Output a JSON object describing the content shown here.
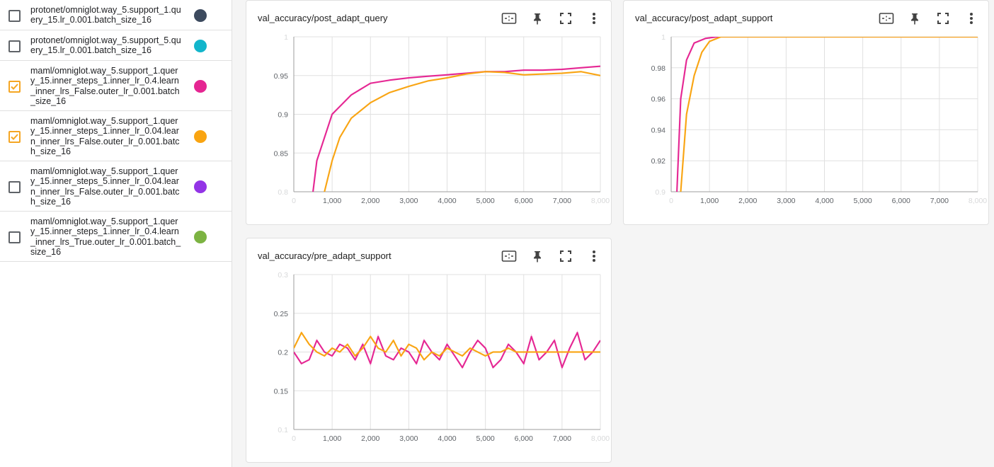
{
  "runs": [
    {
      "label": "protonet/omniglot.way_5.support_1.query_15.lr_0.001.batch_size_16",
      "checked": false,
      "color": "#3c4a5e"
    },
    {
      "label": "protonet/omniglot.way_5.support_5.query_15.lr_0.001.batch_size_16",
      "checked": false,
      "color": "#12b5cb"
    },
    {
      "label": "maml/omniglot.way_5.support_1.query_15.inner_steps_1.inner_lr_0.4.learn_inner_lrs_False.outer_lr_0.001.batch_size_16",
      "checked": true,
      "color": "#e52592"
    },
    {
      "label": "maml/omniglot.way_5.support_1.query_15.inner_steps_1.inner_lr_0.04.learn_inner_lrs_False.outer_lr_0.001.batch_size_16",
      "checked": true,
      "color": "#f9a411"
    },
    {
      "label": "maml/omniglot.way_5.support_1.query_15.inner_steps_5.inner_lr_0.04.learn_inner_lrs_False.outer_lr_0.001.batch_size_16",
      "checked": false,
      "color": "#9334e6"
    },
    {
      "label": "maml/omniglot.way_5.support_1.query_15.inner_steps_1.inner_lr_0.4.learn_inner_lrs_True.outer_lr_0.001.batch_size_16",
      "checked": false,
      "color": "#7cb342"
    }
  ],
  "icons": [
    "fit-domain-icon",
    "pin-icon",
    "fullscreen-icon",
    "more-vert-icon"
  ],
  "chart_data": [
    {
      "title": "val_accuracy/post_adapt_query",
      "type": "line",
      "xlim": [
        0,
        8000
      ],
      "ylim": [
        0.8,
        1.0
      ],
      "xticks": [
        0,
        1000,
        2000,
        3000,
        4000,
        5000,
        6000,
        7000,
        8000
      ],
      "xtick_labels": [
        "0",
        "1,000",
        "2,000",
        "3,000",
        "4,000",
        "5,000",
        "6,000",
        "7,000",
        "8,000"
      ],
      "yticks": [
        0.8,
        0.85,
        0.9,
        0.95,
        1.0
      ],
      "ytick_labels": [
        "0.8",
        "0.85",
        "0.9",
        "0.95",
        "1"
      ],
      "grid": true,
      "series": [
        {
          "color": "#e52592",
          "x": [
            0,
            500,
            600,
            800,
            1000,
            1200,
            1500,
            2000,
            2500,
            3000,
            3500,
            4000,
            4500,
            5000,
            5500,
            6000,
            6500,
            7000,
            7500,
            8000
          ],
          "y": [
            0.7,
            0.8,
            0.84,
            0.87,
            0.9,
            0.91,
            0.925,
            0.94,
            0.944,
            0.947,
            0.949,
            0.951,
            0.953,
            0.955,
            0.955,
            0.957,
            0.957,
            0.958,
            0.96,
            0.962
          ]
        },
        {
          "color": "#f9a411",
          "x": [
            0,
            800,
            1000,
            1200,
            1500,
            2000,
            2500,
            3000,
            3500,
            4000,
            4500,
            5000,
            5500,
            6000,
            6500,
            7000,
            7500,
            8000
          ],
          "y": [
            0.7,
            0.8,
            0.84,
            0.87,
            0.895,
            0.915,
            0.928,
            0.936,
            0.943,
            0.947,
            0.952,
            0.955,
            0.954,
            0.951,
            0.952,
            0.953,
            0.955,
            0.95
          ]
        }
      ]
    },
    {
      "title": "val_accuracy/post_adapt_support",
      "type": "line",
      "xlim": [
        0,
        8000
      ],
      "ylim": [
        0.9,
        1.0
      ],
      "xticks": [
        0,
        1000,
        2000,
        3000,
        4000,
        5000,
        6000,
        7000,
        8000
      ],
      "xtick_labels": [
        "0",
        "1,000",
        "2,000",
        "3,000",
        "4,000",
        "5,000",
        "6,000",
        "7,000",
        "8,000"
      ],
      "yticks": [
        0.9,
        0.92,
        0.94,
        0.96,
        0.98,
        1.0
      ],
      "ytick_labels": [
        "0.9",
        "0.92",
        "0.94",
        "0.96",
        "0.98",
        "1"
      ],
      "grid": true,
      "series": [
        {
          "color": "#e52592",
          "x": [
            0,
            150,
            250,
            400,
            600,
            900,
            1200,
            8000
          ],
          "y": [
            0.85,
            0.9,
            0.96,
            0.985,
            0.996,
            0.999,
            1.0,
            1.0
          ]
        },
        {
          "color": "#f9a411",
          "x": [
            0,
            250,
            400,
            600,
            800,
            1000,
            1300,
            8000
          ],
          "y": [
            0.85,
            0.9,
            0.95,
            0.975,
            0.99,
            0.997,
            1.0,
            1.0
          ]
        }
      ]
    },
    {
      "title": "val_accuracy/pre_adapt_support",
      "type": "line",
      "xlim": [
        0,
        8000
      ],
      "ylim": [
        0.1,
        0.3
      ],
      "xticks": [
        0,
        1000,
        2000,
        3000,
        4000,
        5000,
        6000,
        7000,
        8000
      ],
      "xtick_labels": [
        "0",
        "1,000",
        "2,000",
        "3,000",
        "4,000",
        "5,000",
        "6,000",
        "7,000",
        "8,000"
      ],
      "yticks": [
        0.1,
        0.15,
        0.2,
        0.25,
        0.3
      ],
      "ytick_labels": [
        "0.1",
        "0.15",
        "0.2",
        "0.25",
        "0.3"
      ],
      "grid": true,
      "series": [
        {
          "color": "#e52592",
          "x": [
            0,
            200,
            400,
            600,
            800,
            1000,
            1200,
            1400,
            1600,
            1800,
            2000,
            2200,
            2400,
            2600,
            2800,
            3000,
            3200,
            3400,
            3600,
            3800,
            4000,
            4200,
            4400,
            4600,
            4800,
            5000,
            5200,
            5400,
            5600,
            5800,
            6000,
            6200,
            6400,
            6600,
            6800,
            7000,
            7200,
            7400,
            7600,
            7800,
            8000
          ],
          "y": [
            0.2,
            0.185,
            0.19,
            0.215,
            0.2,
            0.195,
            0.21,
            0.205,
            0.19,
            0.21,
            0.185,
            0.22,
            0.195,
            0.19,
            0.205,
            0.2,
            0.185,
            0.215,
            0.2,
            0.19,
            0.21,
            0.195,
            0.18,
            0.2,
            0.215,
            0.205,
            0.18,
            0.19,
            0.21,
            0.2,
            0.185,
            0.22,
            0.19,
            0.2,
            0.215,
            0.18,
            0.205,
            0.225,
            0.19,
            0.2,
            0.215
          ]
        },
        {
          "color": "#f9a411",
          "x": [
            0,
            200,
            400,
            600,
            800,
            1000,
            1200,
            1400,
            1600,
            1800,
            2000,
            2200,
            2400,
            2600,
            2800,
            3000,
            3200,
            3400,
            3600,
            3800,
            4000,
            4200,
            4400,
            4600,
            4800,
            5000,
            5200,
            5400,
            5600,
            5800,
            6000,
            6200,
            6400,
            6600,
            6800,
            7000,
            7200,
            7400,
            7600,
            7800,
            8000
          ],
          "y": [
            0.205,
            0.225,
            0.21,
            0.2,
            0.195,
            0.205,
            0.2,
            0.21,
            0.195,
            0.205,
            0.22,
            0.205,
            0.2,
            0.215,
            0.195,
            0.21,
            0.205,
            0.19,
            0.2,
            0.195,
            0.205,
            0.2,
            0.195,
            0.205,
            0.2,
            0.195,
            0.2,
            0.2,
            0.205,
            0.2,
            0.2,
            0.2,
            0.2,
            0.2,
            0.2,
            0.2,
            0.2,
            0.2,
            0.2,
            0.2,
            0.2
          ]
        }
      ]
    }
  ]
}
